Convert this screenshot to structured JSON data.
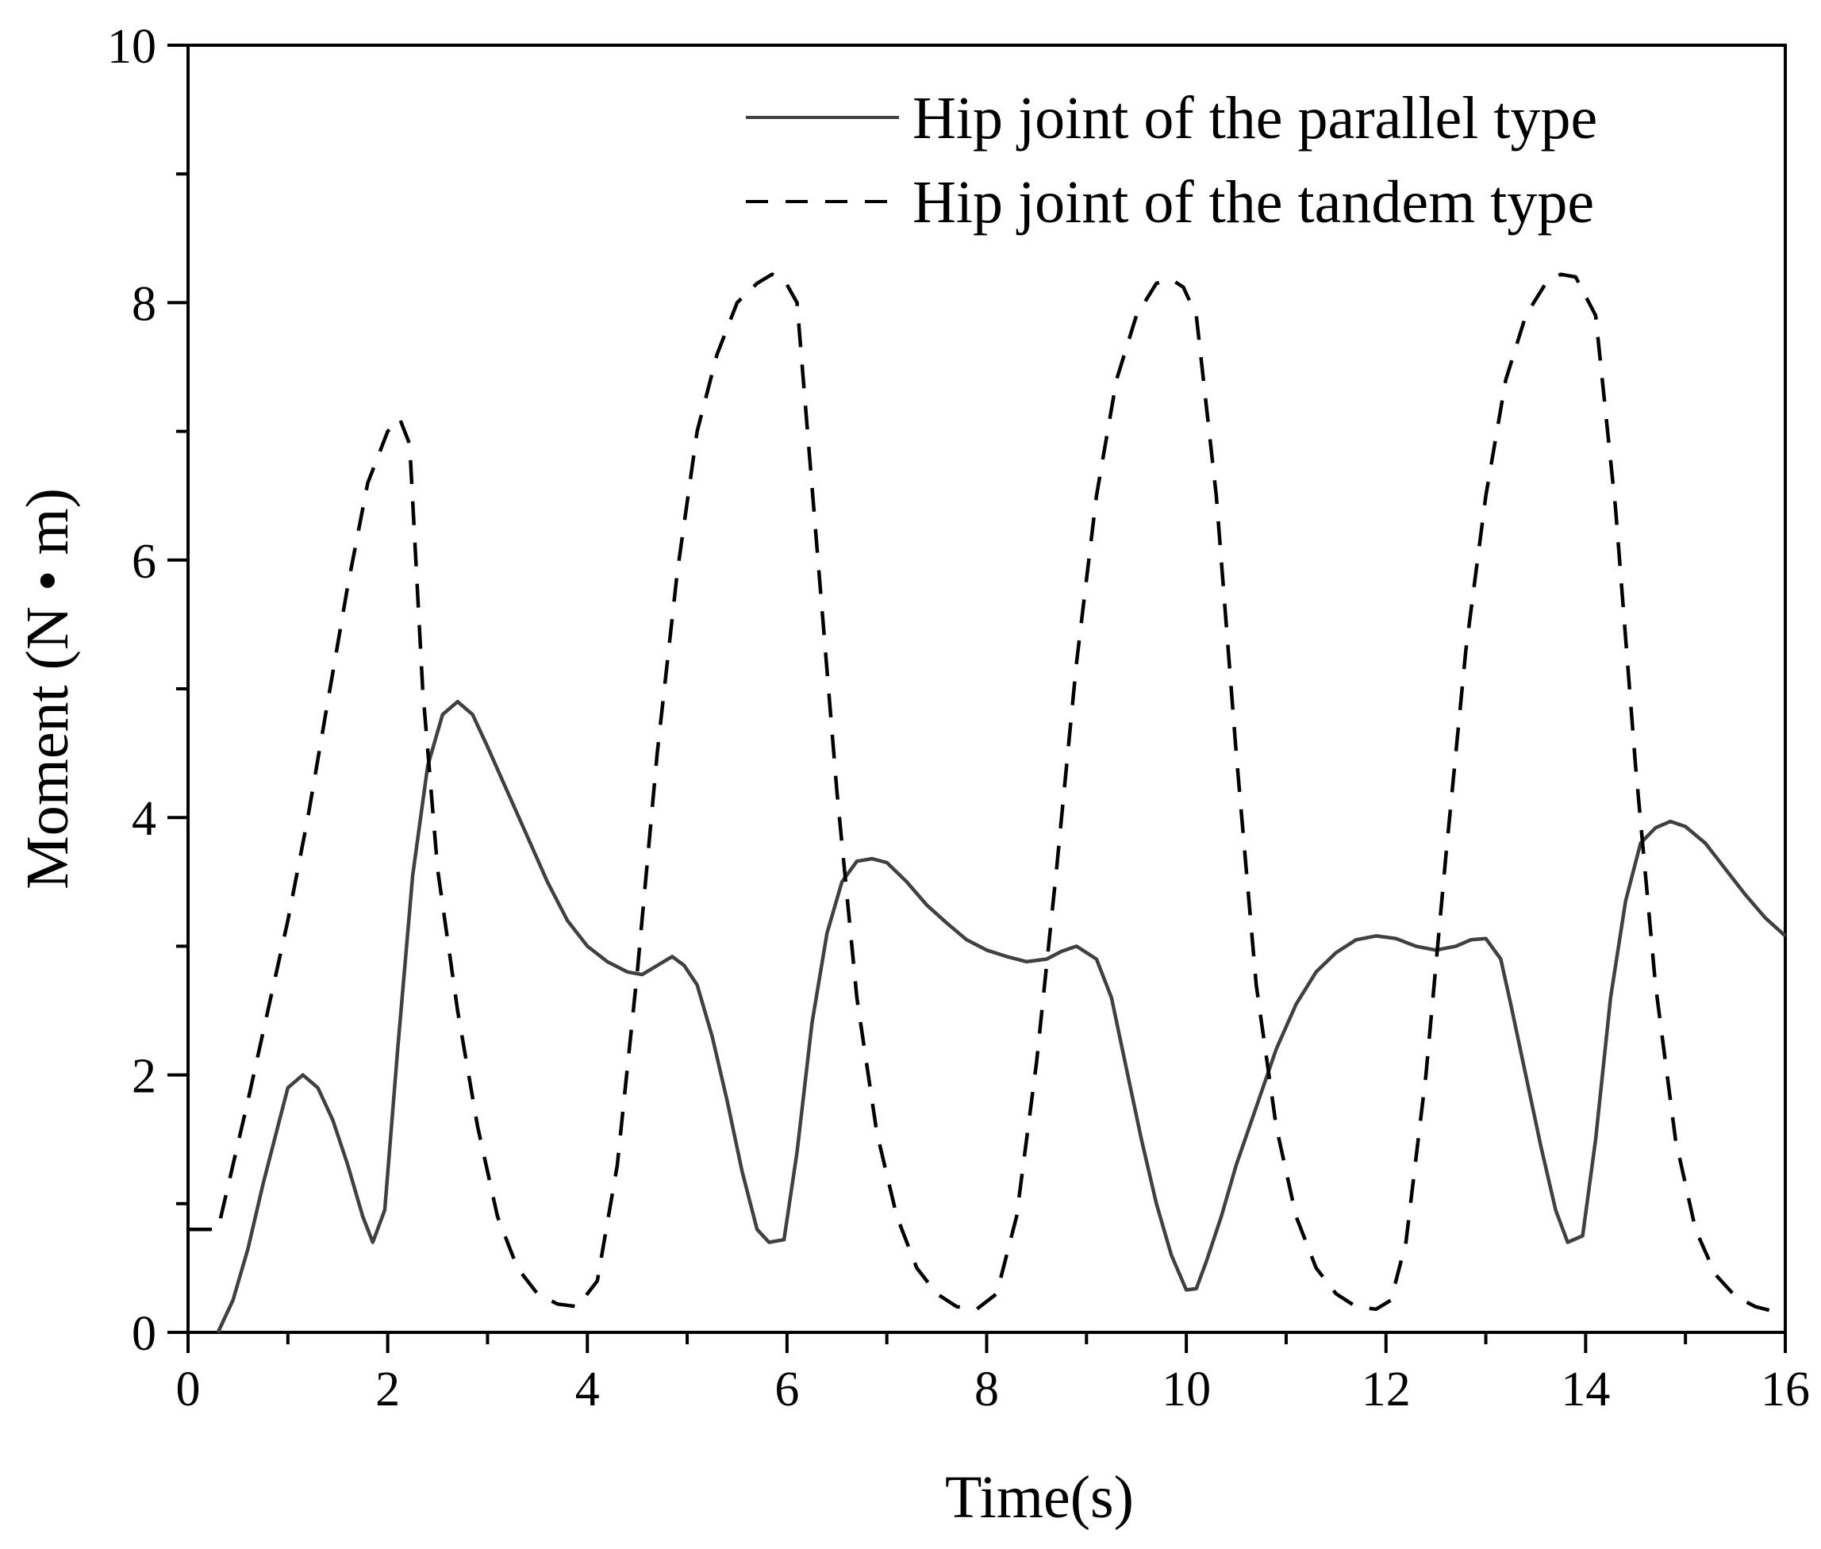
{
  "chart_data": {
    "type": "line",
    "title": "",
    "xlabel": "Time(s)",
    "ylabel": "Moment (N • m)",
    "xlim": [
      0,
      16
    ],
    "ylim": [
      0,
      10
    ],
    "xticks": [
      "0",
      "2",
      "4",
      "6",
      "8",
      "10",
      "12",
      "14",
      "16"
    ],
    "yticks": [
      "0",
      "2",
      "4",
      "6",
      "8",
      "10"
    ],
    "grid": false,
    "legend_position": "top-right",
    "series": [
      {
        "name": "Hip joint of the parallel type",
        "style": "solid",
        "color": "#404040",
        "x": [
          0.3,
          0.45,
          0.6,
          0.75,
          0.9,
          1.0,
          1.15,
          1.3,
          1.45,
          1.6,
          1.75,
          1.85,
          1.97,
          2.1,
          2.25,
          2.4,
          2.55,
          2.7,
          2.85,
          3.0,
          3.2,
          3.4,
          3.6,
          3.8,
          4.0,
          4.2,
          4.4,
          4.55,
          4.7,
          4.85,
          4.97,
          5.1,
          5.25,
          5.4,
          5.55,
          5.7,
          5.82,
          5.97,
          6.1,
          6.25,
          6.4,
          6.55,
          6.7,
          6.85,
          7.0,
          7.2,
          7.4,
          7.6,
          7.8,
          8.0,
          8.2,
          8.4,
          8.6,
          8.75,
          8.9,
          9.1,
          9.25,
          9.4,
          9.55,
          9.7,
          9.85,
          10.0,
          10.1,
          10.2,
          10.35,
          10.5,
          10.7,
          10.9,
          11.1,
          11.3,
          11.5,
          11.7,
          11.9,
          12.1,
          12.3,
          12.5,
          12.7,
          12.85,
          13.0,
          13.15,
          13.25,
          13.4,
          13.55,
          13.7,
          13.82,
          13.97,
          14.1,
          14.25,
          14.4,
          14.55,
          14.7,
          14.85,
          15.0,
          15.2,
          15.4,
          15.6,
          15.8,
          16.0
        ],
        "y": [
          0.0,
          0.25,
          0.65,
          1.15,
          1.6,
          1.9,
          2.0,
          1.9,
          1.65,
          1.3,
          0.9,
          0.7,
          0.95,
          2.2,
          3.55,
          4.4,
          4.8,
          4.9,
          4.8,
          4.55,
          4.2,
          3.85,
          3.5,
          3.2,
          3.0,
          2.88,
          2.8,
          2.78,
          2.85,
          2.92,
          2.85,
          2.7,
          2.3,
          1.8,
          1.25,
          0.8,
          0.7,
          0.72,
          1.4,
          2.4,
          3.1,
          3.5,
          3.66,
          3.68,
          3.65,
          3.5,
          3.32,
          3.18,
          3.05,
          2.97,
          2.92,
          2.88,
          2.9,
          2.96,
          3.0,
          2.9,
          2.6,
          2.05,
          1.5,
          1.0,
          0.6,
          0.33,
          0.34,
          0.55,
          0.9,
          1.3,
          1.75,
          2.2,
          2.55,
          2.8,
          2.95,
          3.05,
          3.08,
          3.06,
          3.0,
          2.97,
          3.0,
          3.05,
          3.06,
          2.9,
          2.55,
          2.0,
          1.45,
          0.95,
          0.7,
          0.75,
          1.5,
          2.6,
          3.35,
          3.8,
          3.92,
          3.97,
          3.93,
          3.8,
          3.6,
          3.4,
          3.22,
          3.08
        ]
      },
      {
        "name": "Hip joint of the tandem type",
        "style": "dashed",
        "color": "#000000",
        "x": [
          0.0,
          0.3,
          0.45,
          0.6,
          0.8,
          1.0,
          1.2,
          1.4,
          1.6,
          1.8,
          2.0,
          2.12,
          2.22,
          2.35,
          2.5,
          2.7,
          2.9,
          3.1,
          3.3,
          3.5,
          3.7,
          3.9,
          4.1,
          4.3,
          4.5,
          4.7,
          4.9,
          5.1,
          5.3,
          5.5,
          5.7,
          5.85,
          5.97,
          6.1,
          6.3,
          6.5,
          6.7,
          6.9,
          7.1,
          7.3,
          7.5,
          7.7,
          7.9,
          8.1,
          8.3,
          8.5,
          8.7,
          8.9,
          9.1,
          9.3,
          9.5,
          9.7,
          9.85,
          9.97,
          10.1,
          10.3,
          10.5,
          10.7,
          10.9,
          11.1,
          11.3,
          11.5,
          11.7,
          11.9,
          12.05,
          12.2,
          12.4,
          12.6,
          12.8,
          13.0,
          13.2,
          13.4,
          13.6,
          13.75,
          13.9,
          14.1,
          14.3,
          14.5,
          14.7,
          14.9,
          15.1,
          15.3,
          15.5,
          15.7,
          15.85,
          16.0
        ],
        "y": [
          0.8,
          0.8,
          1.3,
          1.8,
          2.5,
          3.2,
          4.0,
          4.9,
          5.8,
          6.6,
          7.0,
          7.1,
          6.9,
          5.0,
          3.6,
          2.5,
          1.6,
          0.9,
          0.5,
          0.3,
          0.22,
          0.2,
          0.4,
          1.3,
          2.8,
          4.5,
          5.9,
          7.0,
          7.6,
          8.0,
          8.15,
          8.22,
          8.18,
          8.0,
          6.1,
          4.2,
          2.6,
          1.55,
          0.9,
          0.5,
          0.3,
          0.2,
          0.18,
          0.3,
          0.9,
          2.1,
          3.6,
          5.2,
          6.5,
          7.4,
          7.9,
          8.15,
          8.18,
          8.12,
          7.9,
          6.5,
          4.5,
          2.7,
          1.6,
          0.9,
          0.5,
          0.3,
          0.2,
          0.18,
          0.25,
          0.7,
          2.0,
          3.7,
          5.3,
          6.5,
          7.4,
          7.9,
          8.15,
          8.22,
          8.2,
          7.9,
          6.4,
          4.4,
          2.7,
          1.5,
          0.8,
          0.45,
          0.28,
          0.2,
          0.17,
          0.17
        ]
      }
    ]
  }
}
